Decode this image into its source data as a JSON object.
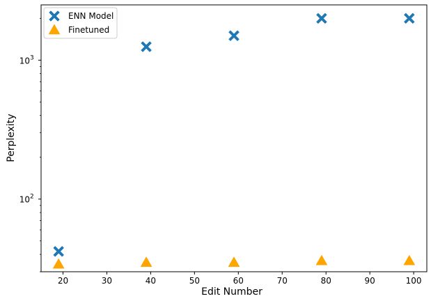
{
  "chart_data": {
    "type": "scatter",
    "title": "",
    "xlabel": "Edit Number",
    "ylabel": "Perplexity",
    "xlim": [
      15,
      103
    ],
    "ylim": [
      30,
      2500
    ],
    "yscale": "log",
    "x_ticks": [
      20,
      30,
      40,
      50,
      60,
      70,
      80,
      90,
      100
    ],
    "x_tick_labels": [
      "20",
      "30",
      "40",
      "50",
      "60",
      "70",
      "80",
      "90",
      "100"
    ],
    "y_major_ticks": [
      100,
      1000
    ],
    "y_tick_labels": [
      {
        "base": "10",
        "exp": "2"
      },
      {
        "base": "10",
        "exp": "3"
      }
    ],
    "grid": false,
    "legend_position": "top-left",
    "series": [
      {
        "name": "ENN Model",
        "marker": "X",
        "color": "#1f77b4",
        "x": [
          19,
          39,
          59,
          79,
          99
        ],
        "y": [
          42,
          1250,
          1500,
          2000,
          2000
        ]
      },
      {
        "name": "Finetuned",
        "marker": "triangle",
        "color": "#ffa500",
        "x": [
          19,
          39,
          59,
          79,
          99
        ],
        "y": [
          34,
          35,
          35,
          36,
          36
        ]
      }
    ]
  }
}
